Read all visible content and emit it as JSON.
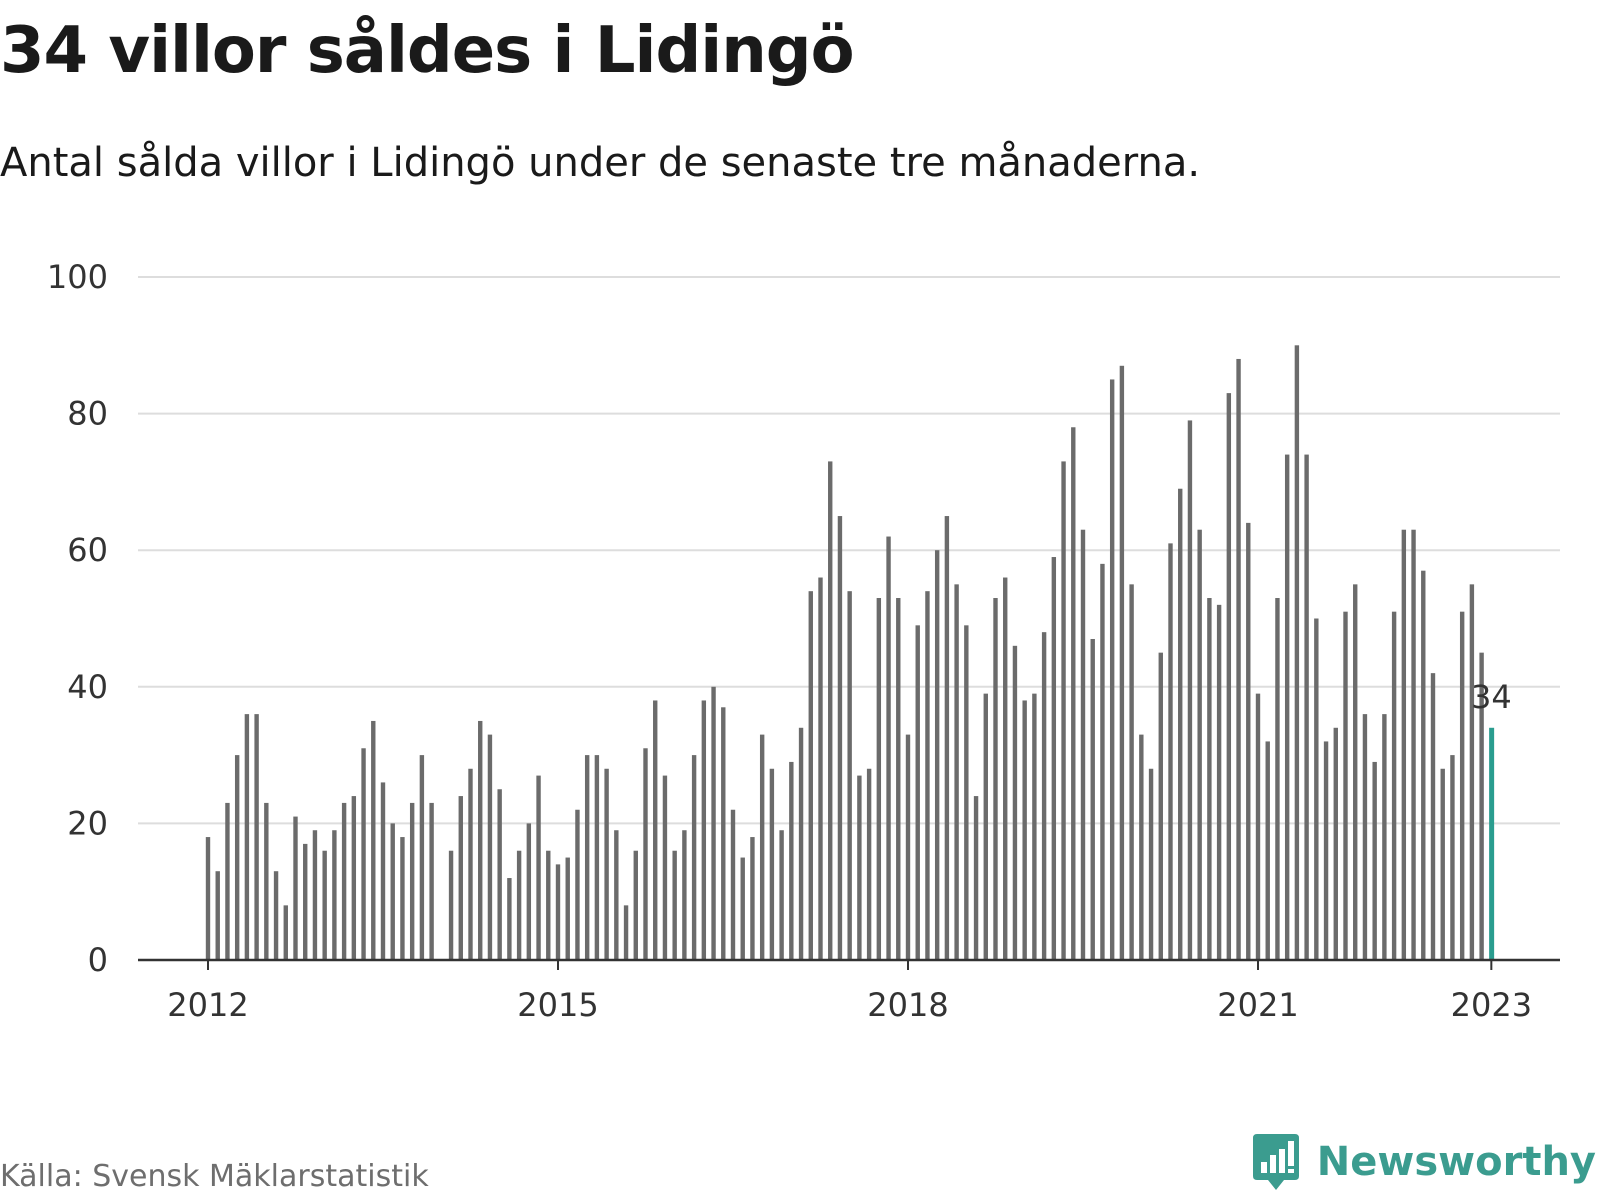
{
  "header": {
    "title": "34 villor såldes i Lidingö",
    "subtitle": "Antal sålda villor i Lidingö under de senaste tre månaderna."
  },
  "footer": {
    "source": "Källa: Svensk Mäklarstatistik",
    "brand": "Newsworthy",
    "brand_icon": "bar-chart-speech-bubble-icon",
    "brand_color": "#3b9c8f"
  },
  "colors": {
    "bar": "#6b6b6b",
    "highlight": "#2a9d8f",
    "grid": "#dddddd",
    "axis": "#333333"
  },
  "chart_data": {
    "type": "bar",
    "title": "34 villor såldes i Lidingö",
    "subtitle": "Antal sålda villor i Lidingö under de senaste tre månaderna.",
    "xlabel": "",
    "ylabel": "",
    "ylim": [
      0,
      100
    ],
    "yticks": [
      "0",
      "20",
      "40",
      "60",
      "80",
      "100"
    ],
    "xticks": [
      "2012",
      "2015",
      "2018",
      "2021",
      "2023"
    ],
    "grid": true,
    "start": "2012-01",
    "interval": "month",
    "values": [
      18,
      13,
      23,
      30,
      36,
      36,
      23,
      13,
      8,
      21,
      17,
      19,
      16,
      19,
      23,
      24,
      31,
      35,
      26,
      20,
      18,
      23,
      30,
      23,
      0,
      16,
      24,
      28,
      35,
      33,
      25,
      12,
      16,
      20,
      27,
      16,
      14,
      15,
      22,
      30,
      30,
      28,
      19,
      8,
      16,
      31,
      38,
      27,
      16,
      19,
      30,
      38,
      40,
      37,
      22,
      15,
      18,
      33,
      28,
      19,
      29,
      34,
      54,
      56,
      73,
      65,
      54,
      27,
      28,
      53,
      62,
      53,
      33,
      49,
      54,
      60,
      65,
      55,
      49,
      24,
      39,
      53,
      56,
      46,
      38,
      39,
      48,
      59,
      73,
      78,
      63,
      47,
      58,
      85,
      87,
      55,
      33,
      28,
      45,
      61,
      69,
      79,
      63,
      53,
      52,
      83,
      88,
      64,
      39,
      32,
      53,
      74,
      90,
      74,
      50,
      32,
      34,
      51,
      55,
      36,
      29,
      36,
      51,
      63,
      63,
      57,
      42,
      28,
      30,
      51,
      55,
      45,
      34
    ],
    "highlight": {
      "label": "34",
      "value": 34
    }
  }
}
